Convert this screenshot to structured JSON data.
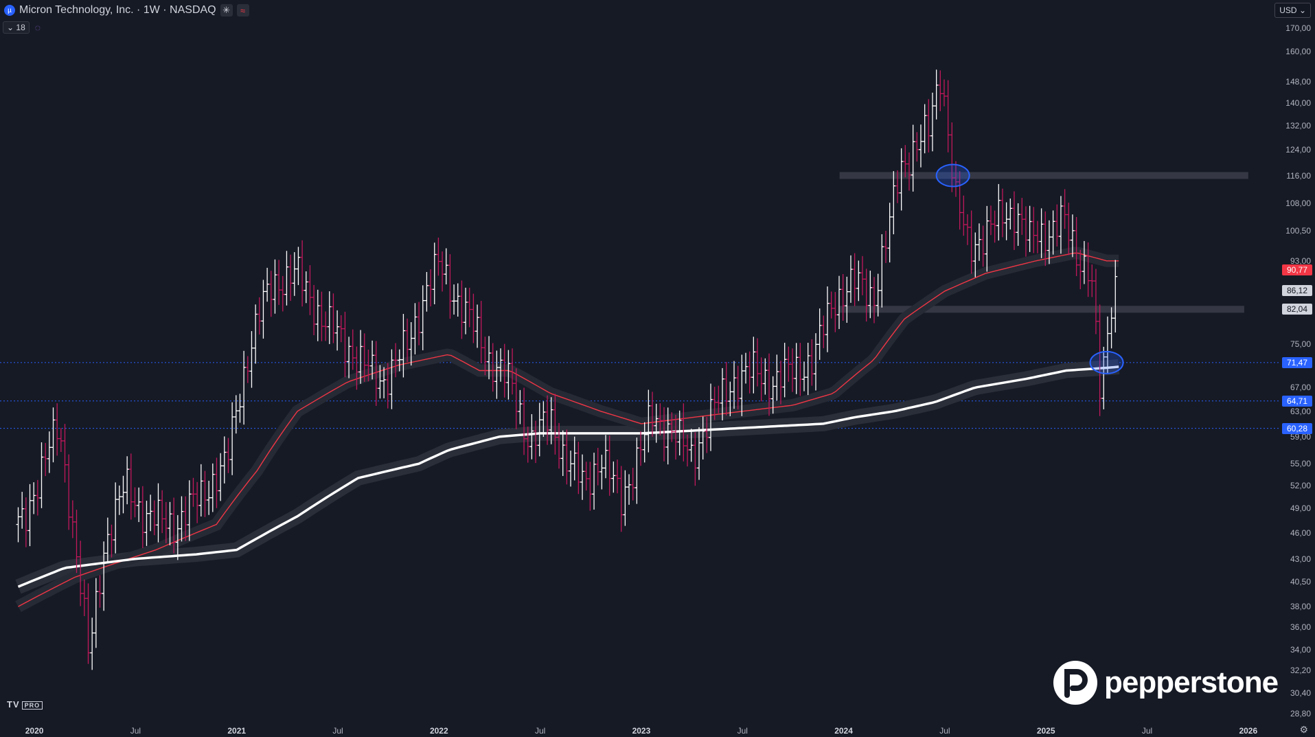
{
  "header": {
    "title": "Micron Technology, Inc. · 1W · NASDAQ",
    "symbol_icon": "micron-logo-icon",
    "indicator_count": "18",
    "currency": "USD"
  },
  "colors": {
    "background": "#161a25",
    "bull": "#ffffff",
    "bear": "#c2185b",
    "support_blue": "#2962ff",
    "resistance_red": "#e91e63",
    "ma_red": "#f23645",
    "ma_white": "#ffffff",
    "gray_zone": "#434651"
  },
  "chart_data": {
    "type": "line",
    "title": "Micron Technology, Inc. · 1W · NASDAQ",
    "scale": "log",
    "ylim": [
      28,
      172
    ],
    "y_ticks": [
      "170,00",
      "160,00",
      "148,00",
      "140,00",
      "132,00",
      "124,00",
      "116,00",
      "108,00",
      "100,50",
      "93,00",
      "75,00",
      "67,00",
      "63,00",
      "59,00",
      "55,00",
      "52,00",
      "49,00",
      "46,00",
      "43,00",
      "40,50",
      "38,00",
      "36,00",
      "34,00",
      "32,20",
      "30,40",
      "28,80"
    ],
    "x_ticks": [
      {
        "label": "2020",
        "year": true,
        "t": 2020.0
      },
      {
        "label": "Jul",
        "year": false,
        "t": 2020.5
      },
      {
        "label": "2021",
        "year": true,
        "t": 2021.0
      },
      {
        "label": "Jul",
        "year": false,
        "t": 2021.5
      },
      {
        "label": "2022",
        "year": true,
        "t": 2022.0
      },
      {
        "label": "Jul",
        "year": false,
        "t": 2022.5
      },
      {
        "label": "2023",
        "year": true,
        "t": 2023.0
      },
      {
        "label": "Jul",
        "year": false,
        "t": 2023.5
      },
      {
        "label": "2024",
        "year": true,
        "t": 2024.0
      },
      {
        "label": "Jul",
        "year": false,
        "t": 2024.5
      },
      {
        "label": "2025",
        "year": true,
        "t": 2025.0
      },
      {
        "label": "Jul",
        "year": false,
        "t": 2025.5
      },
      {
        "label": "2026",
        "year": true,
        "t": 2026.0
      }
    ],
    "price_badges": [
      {
        "label": "90,77",
        "value": 90.77,
        "bg": "#f23645",
        "fg": "#ffffff"
      },
      {
        "label": "86,12",
        "value": 86.12,
        "bg": "#d1d4dc",
        "fg": "#131722"
      },
      {
        "label": "82,04",
        "value": 82.04,
        "bg": "#d1d4dc",
        "fg": "#131722"
      },
      {
        "label": "71,47",
        "value": 71.47,
        "bg": "#2962ff",
        "fg": "#ffffff"
      },
      {
        "label": "64,71",
        "value": 64.71,
        "bg": "#2962ff",
        "fg": "#ffffff"
      },
      {
        "label": "60,28",
        "value": 60.28,
        "bg": "#2962ff",
        "fg": "#ffffff"
      }
    ],
    "price_anchors": [
      [
        2019.95,
        47
      ],
      [
        2020.05,
        56
      ],
      [
        2020.12,
        60
      ],
      [
        2020.2,
        45
      ],
      [
        2020.27,
        33
      ],
      [
        2020.35,
        45
      ],
      [
        2020.45,
        52
      ],
      [
        2020.55,
        48
      ],
      [
        2020.7,
        47
      ],
      [
        2020.8,
        50
      ],
      [
        2020.95,
        55
      ],
      [
        2021.05,
        72
      ],
      [
        2021.12,
        82
      ],
      [
        2021.18,
        88
      ],
      [
        2021.3,
        90
      ],
      [
        2021.42,
        80
      ],
      [
        2021.5,
        77
      ],
      [
        2021.6,
        72
      ],
      [
        2021.72,
        68
      ],
      [
        2021.85,
        75
      ],
      [
        2021.95,
        88
      ],
      [
        2022.0,
        92
      ],
      [
        2022.08,
        85
      ],
      [
        2022.15,
        80
      ],
      [
        2022.25,
        72
      ],
      [
        2022.35,
        68
      ],
      [
        2022.45,
        58
      ],
      [
        2022.55,
        62
      ],
      [
        2022.62,
        56
      ],
      [
        2022.72,
        52
      ],
      [
        2022.8,
        56
      ],
      [
        2022.9,
        50
      ],
      [
        2022.97,
        55
      ],
      [
        2023.05,
        62
      ],
      [
        2023.15,
        60
      ],
      [
        2023.25,
        56
      ],
      [
        2023.35,
        63
      ],
      [
        2023.45,
        68
      ],
      [
        2023.55,
        70
      ],
      [
        2023.65,
        68
      ],
      [
        2023.75,
        70
      ],
      [
        2023.85,
        72
      ],
      [
        2023.95,
        84
      ],
      [
        2024.05,
        88
      ],
      [
        2024.15,
        85
      ],
      [
        2024.22,
        100
      ],
      [
        2024.28,
        118
      ],
      [
        2024.35,
        125
      ],
      [
        2024.42,
        130
      ],
      [
        2024.48,
        152
      ],
      [
        2024.55,
        110
      ],
      [
        2024.62,
        96
      ],
      [
        2024.7,
        100
      ],
      [
        2024.78,
        104
      ],
      [
        2024.85,
        106
      ],
      [
        2024.92,
        98
      ],
      [
        2025.0,
        100
      ],
      [
        2025.08,
        104
      ],
      [
        2025.15,
        94
      ],
      [
        2025.22,
        92
      ],
      [
        2025.27,
        64
      ],
      [
        2025.32,
        82
      ],
      [
        2025.36,
        92
      ]
    ],
    "ma_red": [
      [
        2019.92,
        38
      ],
      [
        2020.2,
        41
      ],
      [
        2020.6,
        44
      ],
      [
        2020.9,
        47
      ],
      [
        2021.1,
        54
      ],
      [
        2021.3,
        63
      ],
      [
        2021.55,
        68
      ],
      [
        2021.8,
        71
      ],
      [
        2022.05,
        73
      ],
      [
        2022.2,
        70
      ],
      [
        2022.35,
        70
      ],
      [
        2022.55,
        66
      ],
      [
        2022.8,
        63
      ],
      [
        2023.0,
        61
      ],
      [
        2023.25,
        62
      ],
      [
        2023.5,
        63
      ],
      [
        2023.75,
        64
      ],
      [
        2023.95,
        66
      ],
      [
        2024.15,
        72
      ],
      [
        2024.3,
        80
      ],
      [
        2024.5,
        86
      ],
      [
        2024.7,
        90
      ],
      [
        2024.95,
        93
      ],
      [
        2025.15,
        95
      ],
      [
        2025.3,
        93
      ],
      [
        2025.36,
        93
      ]
    ],
    "ma_white": [
      [
        2019.92,
        40
      ],
      [
        2020.15,
        42
      ],
      [
        2020.5,
        43
      ],
      [
        2020.8,
        43.5
      ],
      [
        2021.0,
        44
      ],
      [
        2021.3,
        48
      ],
      [
        2021.6,
        53
      ],
      [
        2021.9,
        55
      ],
      [
        2022.05,
        57
      ],
      [
        2022.3,
        59
      ],
      [
        2022.5,
        59.5
      ],
      [
        2022.8,
        59.5
      ],
      [
        2023.0,
        59.5
      ],
      [
        2023.3,
        60
      ],
      [
        2023.6,
        60.5
      ],
      [
        2023.9,
        61
      ],
      [
        2024.05,
        62
      ],
      [
        2024.25,
        63
      ],
      [
        2024.45,
        64.5
      ],
      [
        2024.65,
        67
      ],
      [
        2024.9,
        68.5
      ],
      [
        2025.1,
        70
      ],
      [
        2025.3,
        70.5
      ],
      [
        2025.36,
        70.7
      ]
    ],
    "annotations": {
      "circles": [
        {
          "t": 2024.54,
          "value": 116
        },
        {
          "t": 2025.3,
          "value": 71.47
        }
      ],
      "h_lines_dotted": [
        71.47,
        64.71,
        60.28
      ],
      "gray_zones": [
        {
          "t0": 2023.98,
          "t1": 2026.0,
          "value": 116
        },
        {
          "t0": 2023.98,
          "t1": 2025.98,
          "value": 82.04
        }
      ]
    }
  }
}
